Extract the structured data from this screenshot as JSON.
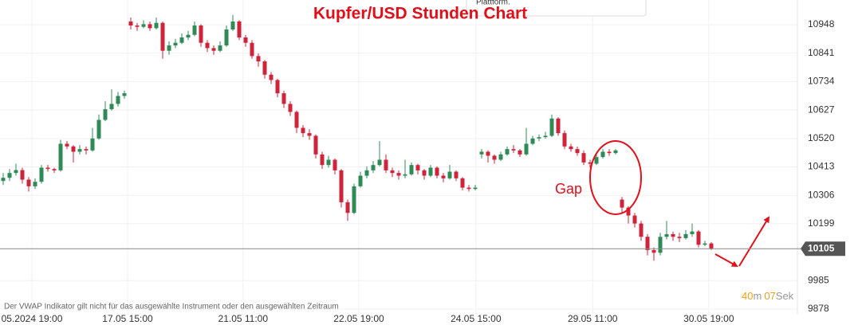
{
  "chart_data": {
    "type": "candlestick",
    "title": "Kupfer/USD Stunden Chart",
    "tooltip": "Plattform.",
    "annotation": "Gap",
    "footer_note": "Der VWAP Indikator gilt nicht für das ausgewählte Instrument oder den ausgewählten Zeitraum",
    "timer": {
      "minutes": "40",
      "minutes_unit": "m",
      "seconds": "07",
      "seconds_unit": "Sek"
    },
    "current_price": 10105,
    "up_color": "#2e8b57",
    "down_color": "#d0223a",
    "grid": true,
    "xlim": [
      -0.5,
      124.5
    ],
    "xticks": [
      {
        "value": 4.5,
        "label": "05.2024 19:00"
      },
      {
        "value": 19.5,
        "label": "17.05 15:00"
      },
      {
        "value": 37.6,
        "label": "21.05 11:00"
      },
      {
        "value": 55.75,
        "label": "22.05 19:00"
      },
      {
        "value": 74.1,
        "label": "24.05 15:00"
      },
      {
        "value": 92.4,
        "label": "29.05 11:00"
      },
      {
        "value": 110.6,
        "label": "30.05 19:00"
      }
    ],
    "ylim": [
      9857,
      11041
    ],
    "yticks": [
      10948,
      10841,
      10734,
      10627,
      10520,
      10413,
      10306,
      10199,
      9985,
      9878
    ],
    "open": [
      10360,
      10372,
      10390,
      10401,
      10365,
      10340,
      10357,
      10410,
      10405,
      10400,
      10500,
      10490,
      10470,
      10480,
      10475,
      10520,
      10590,
      10630,
      10650,
      10680,
      10960,
      10945,
      10940,
      10950,
      10935,
      10955,
      10850,
      10870,
      10880,
      10900,
      10910,
      10945,
      10880,
      10860,
      10850,
      10870,
      10930,
      10960,
      10900,
      10880,
      10830,
      10810,
      10760,
      10740,
      10690,
      10650,
      10620,
      10560,
      10540,
      10530,
      10460,
      10420,
      10440,
      10400,
      10280,
      10240,
      10340,
      10380,
      10400,
      10420,
      10440,
      10400,
      10390,
      10380,
      10385,
      10420,
      10400,
      10380,
      10410,
      10380,
      10370,
      10395,
      10370,
      10335,
      10330,
      10460,
      10470,
      10455,
      10440,
      10460,
      10480,
      10475,
      10460,
      10500,
      10520,
      10525,
      10530,
      10595,
      10540,
      10490,
      10480,
      10465,
      10430,
      10425,
      10450,
      10470,
      10465,
      10290,
      10260,
      10230,
      10200,
      10150,
      10100,
      10090,
      10150,
      10160,
      10150,
      10145,
      10160,
      10170,
      10120,
      10125
    ],
    "high": [
      10390,
      10405,
      10425,
      10410,
      10375,
      10370,
      10420,
      10420,
      10410,
      10515,
      10510,
      10495,
      10495,
      10490,
      10560,
      10610,
      10660,
      10705,
      10695,
      10700,
      10975,
      10955,
      10965,
      10960,
      10975,
      10960,
      10885,
      10895,
      10915,
      10925,
      10960,
      10950,
      10890,
      10870,
      10885,
      10945,
      10985,
      10965,
      10910,
      10890,
      10840,
      10815,
      10770,
      10745,
      10700,
      10660,
      10625,
      10570,
      10555,
      10535,
      10470,
      10455,
      10445,
      10405,
      10290,
      10350,
      10395,
      10415,
      10435,
      10510,
      10460,
      10410,
      10400,
      10440,
      10430,
      10425,
      10405,
      10420,
      10415,
      10390,
      10420,
      10400,
      10375,
      10345,
      10345,
      10480,
      10475,
      10460,
      10470,
      10490,
      10495,
      10480,
      10560,
      10530,
      10535,
      10545,
      10610,
      10600,
      10550,
      10500,
      10490,
      10475,
      10440,
      10460,
      10480,
      10480,
      10480,
      10300,
      10265,
      10240,
      10210,
      10160,
      10110,
      10165,
      10210,
      10170,
      10165,
      10175,
      10200,
      10175,
      10135,
      10130
    ],
    "low": [
      10345,
      10360,
      10380,
      10350,
      10320,
      10330,
      10350,
      10395,
      10390,
      10395,
      10480,
      10430,
      10460,
      10460,
      10470,
      10515,
      10585,
      10625,
      10640,
      10670,
      10930,
      10925,
      10935,
      10925,
      10930,
      10820,
      10835,
      10860,
      10875,
      10890,
      10905,
      10865,
      10845,
      10835,
      10845,
      10865,
      10925,
      10890,
      10865,
      10820,
      10790,
      10745,
      10725,
      10675,
      10635,
      10605,
      10540,
      10525,
      10515,
      10445,
      10405,
      10410,
      10385,
      10260,
      10210,
      10235,
      10335,
      10370,
      10390,
      10415,
      10390,
      10375,
      10365,
      10370,
      10380,
      10385,
      10365,
      10375,
      10370,
      10355,
      10365,
      10360,
      10325,
      10320,
      10325,
      10445,
      10430,
      10425,
      10435,
      10455,
      10465,
      10450,
      10455,
      10495,
      10510,
      10520,
      10525,
      10530,
      10480,
      10470,
      10455,
      10420,
      10410,
      10420,
      10445,
      10455,
      10460,
      10240,
      10200,
      10185,
      10135,
      10080,
      10060,
      10080,
      10140,
      10135,
      10130,
      10140,
      10150,
      10110,
      10115,
      10100
    ],
    "close": [
      10372,
      10390,
      10401,
      10365,
      10340,
      10357,
      10410,
      10405,
      10400,
      10500,
      10490,
      10470,
      10480,
      10475,
      10520,
      10590,
      10630,
      10650,
      10680,
      10690,
      10945,
      10940,
      10950,
      10935,
      10955,
      10850,
      10870,
      10880,
      10900,
      10910,
      10945,
      10880,
      10860,
      10850,
      10870,
      10930,
      10960,
      10900,
      10880,
      10830,
      10810,
      10760,
      10740,
      10690,
      10650,
      10620,
      10560,
      10540,
      10530,
      10460,
      10420,
      10440,
      10400,
      10280,
      10240,
      10340,
      10380,
      10400,
      10420,
      10440,
      10400,
      10390,
      10380,
      10385,
      10420,
      10400,
      10380,
      10410,
      10380,
      10370,
      10395,
      10370,
      10335,
      10330,
      10335,
      10470,
      10455,
      10440,
      10460,
      10480,
      10475,
      10460,
      10500,
      10520,
      10525,
      10530,
      10595,
      10540,
      10490,
      10480,
      10465,
      10430,
      10425,
      10450,
      10470,
      10465,
      10475,
      10260,
      10230,
      10200,
      10150,
      10100,
      10090,
      10150,
      10160,
      10150,
      10145,
      10160,
      10170,
      10120,
      10125,
      10105
    ]
  }
}
